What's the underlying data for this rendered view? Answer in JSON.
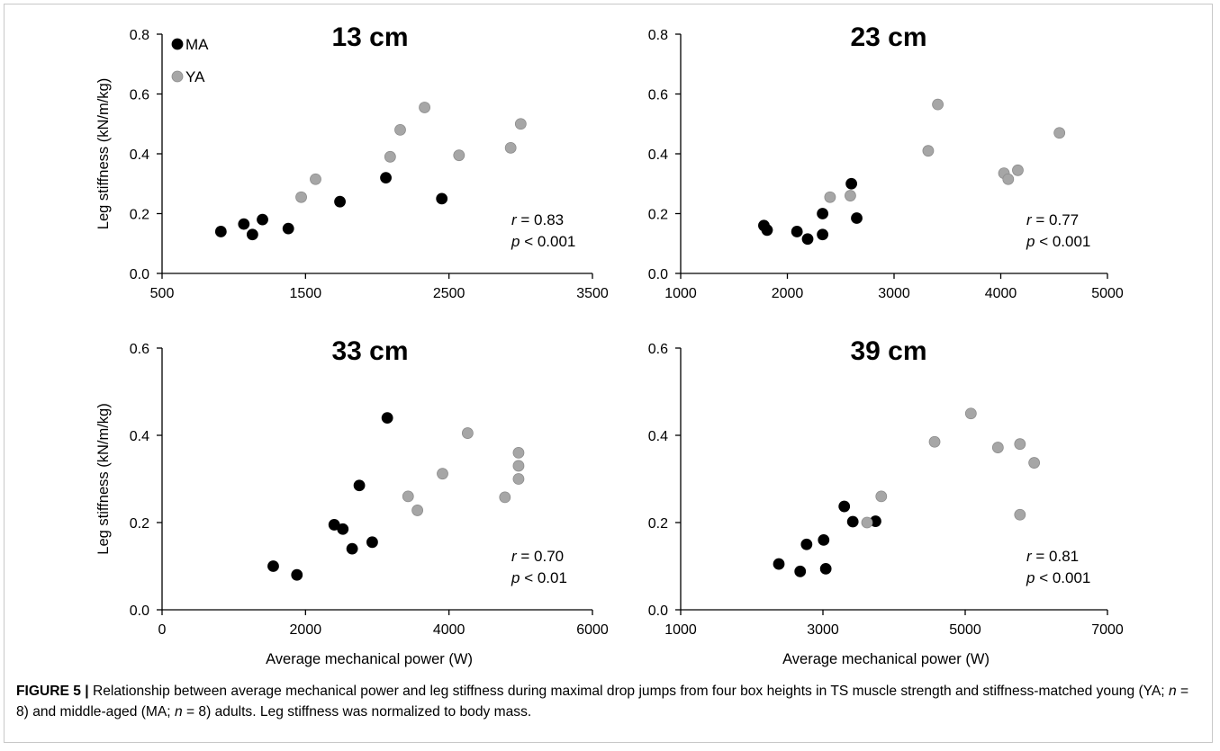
{
  "chart_data": [
    {
      "type": "scatter",
      "title": "13 cm",
      "xlabel": "",
      "ylabel": "Leg stiffness (kN/m/kg)",
      "xlim": [
        500,
        3500
      ],
      "ylim": [
        0,
        0.8
      ],
      "xticks": [
        "500",
        "1500",
        "2500",
        "3500"
      ],
      "yticks": [
        "0.0",
        "0.2",
        "0.4",
        "0.6",
        "0.8"
      ],
      "legend": [
        "MA",
        "YA"
      ],
      "stat_r": "0.83",
      "stat_p": "< 0.001",
      "series": [
        {
          "name": "MA",
          "color": "#000000",
          "points": [
            [
              910,
              0.14
            ],
            [
              1070,
              0.165
            ],
            [
              1130,
              0.13
            ],
            [
              1200,
              0.18
            ],
            [
              1380,
              0.15
            ],
            [
              1740,
              0.24
            ],
            [
              2060,
              0.32
            ],
            [
              2450,
              0.25
            ]
          ]
        },
        {
          "name": "YA",
          "color": "#a6a6a6",
          "points": [
            [
              1470,
              0.255
            ],
            [
              1570,
              0.315
            ],
            [
              2090,
              0.39
            ],
            [
              2160,
              0.48
            ],
            [
              2330,
              0.555
            ],
            [
              2570,
              0.395
            ],
            [
              2930,
              0.42
            ],
            [
              3000,
              0.5
            ]
          ]
        }
      ]
    },
    {
      "type": "scatter",
      "title": "23 cm",
      "xlabel": "",
      "ylabel": "",
      "xlim": [
        1000,
        5000
      ],
      "ylim": [
        0,
        0.8
      ],
      "xticks": [
        "1000",
        "2000",
        "3000",
        "4000",
        "5000"
      ],
      "yticks": [
        "0.0",
        "0.2",
        "0.4",
        "0.6",
        "0.8"
      ],
      "stat_r": "0.77",
      "stat_p": "< 0.001",
      "series": [
        {
          "name": "MA",
          "color": "#000000",
          "points": [
            [
              1780,
              0.16
            ],
            [
              1810,
              0.145
            ],
            [
              2090,
              0.14
            ],
            [
              2190,
              0.115
            ],
            [
              2330,
              0.2
            ],
            [
              2330,
              0.13
            ],
            [
              2600,
              0.3
            ],
            [
              2650,
              0.185
            ]
          ]
        },
        {
          "name": "YA",
          "color": "#a6a6a6",
          "points": [
            [
              2400,
              0.255
            ],
            [
              2590,
              0.26
            ],
            [
              3320,
              0.41
            ],
            [
              3410,
              0.565
            ],
            [
              4030,
              0.335
            ],
            [
              4070,
              0.315
            ],
            [
              4160,
              0.345
            ],
            [
              4550,
              0.47
            ]
          ]
        }
      ]
    },
    {
      "type": "scatter",
      "title": "33 cm",
      "xlabel": "Average mechanical power (W)",
      "ylabel": "Leg stiffness (kN/m/kg)",
      "xlim": [
        0,
        6000
      ],
      "ylim": [
        0,
        0.6
      ],
      "xticks": [
        "0",
        "2000",
        "4000",
        "6000"
      ],
      "yticks": [
        "0.0",
        "0.2",
        "0.4",
        "0.6"
      ],
      "stat_r": "0.70",
      "stat_p": "< 0.01",
      "series": [
        {
          "name": "MA",
          "color": "#000000",
          "points": [
            [
              1550,
              0.1
            ],
            [
              1880,
              0.08
            ],
            [
              2400,
              0.195
            ],
            [
              2520,
              0.185
            ],
            [
              2650,
              0.14
            ],
            [
              2750,
              0.285
            ],
            [
              2930,
              0.155
            ],
            [
              3140,
              0.44
            ]
          ]
        },
        {
          "name": "YA",
          "color": "#a6a6a6",
          "points": [
            [
              3430,
              0.26
            ],
            [
              3560,
              0.228
            ],
            [
              3910,
              0.312
            ],
            [
              4260,
              0.405
            ],
            [
              4780,
              0.258
            ],
            [
              4970,
              0.36
            ],
            [
              4970,
              0.33
            ],
            [
              4970,
              0.3
            ]
          ]
        }
      ]
    },
    {
      "type": "scatter",
      "title": "39 cm",
      "xlabel": "Average mechanical power (W)",
      "ylabel": "",
      "xlim": [
        1000,
        7000
      ],
      "ylim": [
        0,
        0.6
      ],
      "xticks": [
        "1000",
        "3000",
        "5000",
        "7000"
      ],
      "yticks": [
        "0.0",
        "0.2",
        "0.4",
        "0.6"
      ],
      "stat_r": "0.81",
      "stat_p": "< 0.001",
      "series": [
        {
          "name": "MA",
          "color": "#000000",
          "points": [
            [
              2380,
              0.105
            ],
            [
              2680,
              0.088
            ],
            [
              2770,
              0.15
            ],
            [
              3010,
              0.16
            ],
            [
              3040,
              0.094
            ],
            [
              3300,
              0.237
            ],
            [
              3420,
              0.202
            ],
            [
              3740,
              0.203
            ]
          ]
        },
        {
          "name": "YA",
          "color": "#a6a6a6",
          "points": [
            [
              3620,
              0.2
            ],
            [
              3820,
              0.26
            ],
            [
              4570,
              0.385
            ],
            [
              5080,
              0.45
            ],
            [
              5460,
              0.372
            ],
            [
              5770,
              0.38
            ],
            [
              5770,
              0.218
            ],
            [
              5970,
              0.337
            ]
          ]
        }
      ]
    }
  ],
  "caption": {
    "label": "FIGURE 5 |",
    "text_1": " Relationship between average mechanical power and leg stiffness during maximal drop jumps from four box heights in TS muscle strength and stiffness-matched young (YA; ",
    "n1": "n",
    "text_2": " = 8) and middle-aged (MA; ",
    "n2": "n",
    "text_3": " = 8) adults. Leg stiffness was normalized to body mass."
  }
}
